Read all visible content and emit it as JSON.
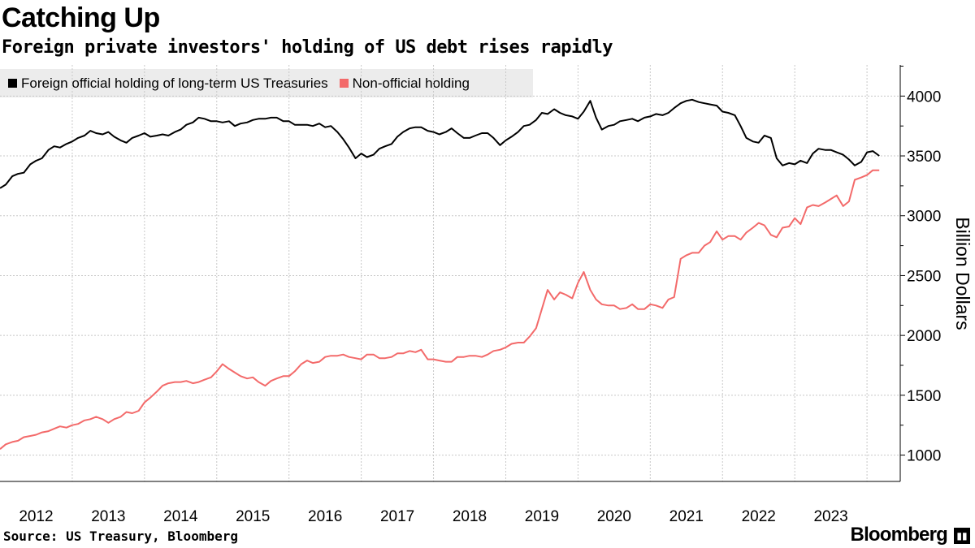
{
  "title": "Catching Up",
  "subtitle": "Foreign private investors' holding of US debt rises rapidly",
  "source": "Source: US Treasury, Bloomberg",
  "brand": "Bloomberg",
  "brand_icon": "bloomberg-terminal-icon",
  "colors": {
    "official": "#000000",
    "non_official": "#f36a6a",
    "grid": "#c8c8c8",
    "legend_bg": "#ececec"
  },
  "chart_data": {
    "type": "line",
    "title": "Catching Up",
    "subtitle": "Foreign private investors' holding of US debt rises rapidly",
    "xlabel": "",
    "ylabel": "Billion Dollars",
    "ylim": [
      780,
      4260
    ],
    "xlim": [
      2011.5,
      2023.96
    ],
    "yticks": [
      1000,
      1500,
      2000,
      2500,
      3000,
      3500,
      4000
    ],
    "xticks": [
      "2012",
      "2013",
      "2014",
      "2015",
      "2016",
      "2017",
      "2018",
      "2019",
      "2020",
      "2021",
      "2022",
      "2023"
    ],
    "grid": true,
    "legend_position": "top-left",
    "series": [
      {
        "name": "Foreign official holding of long-term US Treasuries",
        "color": "#000000",
        "x": [
          2011.5,
          2011.58,
          2011.67,
          2011.75,
          2011.83,
          2011.92,
          2012.0,
          2012.08,
          2012.17,
          2012.25,
          2012.33,
          2012.42,
          2012.5,
          2012.58,
          2012.67,
          2012.75,
          2012.83,
          2012.92,
          2013.0,
          2013.08,
          2013.17,
          2013.25,
          2013.33,
          2013.42,
          2013.5,
          2013.58,
          2013.67,
          2013.75,
          2013.83,
          2013.92,
          2014.0,
          2014.08,
          2014.17,
          2014.25,
          2014.33,
          2014.42,
          2014.5,
          2014.58,
          2014.67,
          2014.75,
          2014.83,
          2014.92,
          2015.0,
          2015.08,
          2015.17,
          2015.25,
          2015.33,
          2015.42,
          2015.5,
          2015.58,
          2015.67,
          2015.75,
          2015.83,
          2015.92,
          2016.0,
          2016.08,
          2016.17,
          2016.25,
          2016.33,
          2016.42,
          2016.5,
          2016.58,
          2016.67,
          2016.75,
          2016.83,
          2016.92,
          2017.0,
          2017.08,
          2017.17,
          2017.25,
          2017.33,
          2017.42,
          2017.5,
          2017.58,
          2017.67,
          2017.75,
          2017.83,
          2017.92,
          2018.0,
          2018.08,
          2018.17,
          2018.25,
          2018.33,
          2018.42,
          2018.5,
          2018.58,
          2018.67,
          2018.75,
          2018.83,
          2018.92,
          2019.0,
          2019.08,
          2019.17,
          2019.25,
          2019.33,
          2019.42,
          2019.5,
          2019.58,
          2019.67,
          2019.75,
          2019.83,
          2019.92,
          2020.0,
          2020.08,
          2020.17,
          2020.25,
          2020.33,
          2020.42,
          2020.5,
          2020.58,
          2020.67,
          2020.75,
          2020.83,
          2020.92,
          2021.0,
          2021.08,
          2021.17,
          2021.25,
          2021.33,
          2021.42,
          2021.5,
          2021.58,
          2021.67,
          2021.75,
          2021.83,
          2021.92,
          2022.0,
          2022.08,
          2022.17,
          2022.25,
          2022.33,
          2022.42,
          2022.5,
          2022.58,
          2022.67,
          2022.75,
          2022.83,
          2022.92,
          2023.0,
          2023.08,
          2023.17,
          2023.25,
          2023.33,
          2023.42,
          2023.5,
          2023.58,
          2023.67
        ],
        "values": [
          3230,
          3260,
          3330,
          3350,
          3360,
          3430,
          3460,
          3480,
          3550,
          3580,
          3570,
          3600,
          3620,
          3650,
          3670,
          3710,
          3690,
          3680,
          3700,
          3660,
          3630,
          3610,
          3650,
          3670,
          3690,
          3660,
          3670,
          3680,
          3670,
          3700,
          3720,
          3760,
          3780,
          3820,
          3810,
          3790,
          3790,
          3780,
          3790,
          3750,
          3770,
          3780,
          3800,
          3810,
          3810,
          3820,
          3820,
          3790,
          3790,
          3760,
          3760,
          3760,
          3750,
          3770,
          3740,
          3750,
          3700,
          3640,
          3570,
          3480,
          3520,
          3490,
          3510,
          3560,
          3580,
          3600,
          3660,
          3700,
          3730,
          3740,
          3740,
          3710,
          3700,
          3680,
          3700,
          3730,
          3690,
          3650,
          3650,
          3670,
          3690,
          3690,
          3650,
          3590,
          3630,
          3660,
          3700,
          3750,
          3760,
          3800,
          3860,
          3850,
          3890,
          3860,
          3840,
          3830,
          3810,
          3870,
          3960,
          3820,
          3720,
          3750,
          3760,
          3790,
          3800,
          3810,
          3790,
          3820,
          3830,
          3850,
          3840,
          3860,
          3900,
          3940,
          3960,
          3970,
          3950,
          3940,
          3930,
          3920,
          3870,
          3860,
          3840,
          3750,
          3650,
          3620,
          3610,
          3670,
          3650,
          3480,
          3420,
          3440,
          3430,
          3460,
          3440,
          3520,
          3560,
          3550,
          3550,
          3530,
          3510,
          3470,
          3420,
          3450,
          3530,
          3540,
          3500
        ]
      },
      {
        "name": "Non-official holding",
        "color": "#f36a6a",
        "x": [
          2011.5,
          2011.58,
          2011.67,
          2011.75,
          2011.83,
          2011.92,
          2012.0,
          2012.08,
          2012.17,
          2012.25,
          2012.33,
          2012.42,
          2012.5,
          2012.58,
          2012.67,
          2012.75,
          2012.83,
          2012.92,
          2013.0,
          2013.08,
          2013.17,
          2013.25,
          2013.33,
          2013.42,
          2013.5,
          2013.58,
          2013.67,
          2013.75,
          2013.83,
          2013.92,
          2014.0,
          2014.08,
          2014.17,
          2014.25,
          2014.33,
          2014.42,
          2014.5,
          2014.58,
          2014.67,
          2014.75,
          2014.83,
          2014.92,
          2015.0,
          2015.08,
          2015.17,
          2015.25,
          2015.33,
          2015.42,
          2015.5,
          2015.58,
          2015.67,
          2015.75,
          2015.83,
          2015.92,
          2016.0,
          2016.08,
          2016.17,
          2016.25,
          2016.33,
          2016.42,
          2016.5,
          2016.58,
          2016.67,
          2016.75,
          2016.83,
          2016.92,
          2017.0,
          2017.08,
          2017.17,
          2017.25,
          2017.33,
          2017.42,
          2017.5,
          2017.58,
          2017.67,
          2017.75,
          2017.83,
          2017.92,
          2018.0,
          2018.08,
          2018.17,
          2018.25,
          2018.33,
          2018.42,
          2018.5,
          2018.58,
          2018.67,
          2018.75,
          2018.83,
          2018.92,
          2019.0,
          2019.08,
          2019.17,
          2019.25,
          2019.33,
          2019.42,
          2019.5,
          2019.58,
          2019.67,
          2019.75,
          2019.83,
          2019.92,
          2020.0,
          2020.08,
          2020.17,
          2020.25,
          2020.33,
          2020.42,
          2020.5,
          2020.58,
          2020.67,
          2020.75,
          2020.83,
          2020.92,
          2021.0,
          2021.08,
          2021.17,
          2021.25,
          2021.33,
          2021.42,
          2021.5,
          2021.58,
          2021.67,
          2021.75,
          2021.83,
          2021.92,
          2022.0,
          2022.08,
          2022.17,
          2022.25,
          2022.33,
          2022.42,
          2022.5,
          2022.58,
          2022.67,
          2022.75,
          2022.83,
          2022.92,
          2023.0,
          2023.08,
          2023.17,
          2023.25,
          2023.33,
          2023.42,
          2023.5,
          2023.58,
          2023.67
        ],
        "values": [
          1050,
          1090,
          1110,
          1120,
          1150,
          1160,
          1170,
          1190,
          1200,
          1220,
          1240,
          1230,
          1250,
          1260,
          1290,
          1300,
          1320,
          1300,
          1270,
          1300,
          1320,
          1360,
          1350,
          1370,
          1440,
          1480,
          1530,
          1580,
          1600,
          1610,
          1610,
          1620,
          1600,
          1610,
          1630,
          1650,
          1700,
          1760,
          1720,
          1690,
          1660,
          1640,
          1650,
          1610,
          1580,
          1620,
          1640,
          1660,
          1660,
          1700,
          1760,
          1790,
          1770,
          1780,
          1820,
          1830,
          1830,
          1840,
          1820,
          1810,
          1800,
          1840,
          1840,
          1810,
          1810,
          1820,
          1850,
          1850,
          1870,
          1860,
          1880,
          1800,
          1800,
          1790,
          1780,
          1780,
          1820,
          1820,
          1830,
          1830,
          1820,
          1840,
          1870,
          1880,
          1900,
          1930,
          1940,
          1940,
          1990,
          2060,
          2220,
          2380,
          2300,
          2360,
          2340,
          2310,
          2440,
          2530,
          2380,
          2300,
          2260,
          2250,
          2250,
          2220,
          2230,
          2260,
          2220,
          2220,
          2260,
          2250,
          2230,
          2300,
          2320,
          2640,
          2670,
          2690,
          2690,
          2750,
          2780,
          2870,
          2800,
          2830,
          2830,
          2800,
          2860,
          2900,
          2940,
          2920,
          2840,
          2820,
          2900,
          2910,
          2980,
          2930,
          3070,
          3090,
          3080,
          3110,
          3140,
          3170,
          3080,
          3120,
          3300,
          3320,
          3340,
          3380,
          3380
        ]
      }
    ]
  }
}
